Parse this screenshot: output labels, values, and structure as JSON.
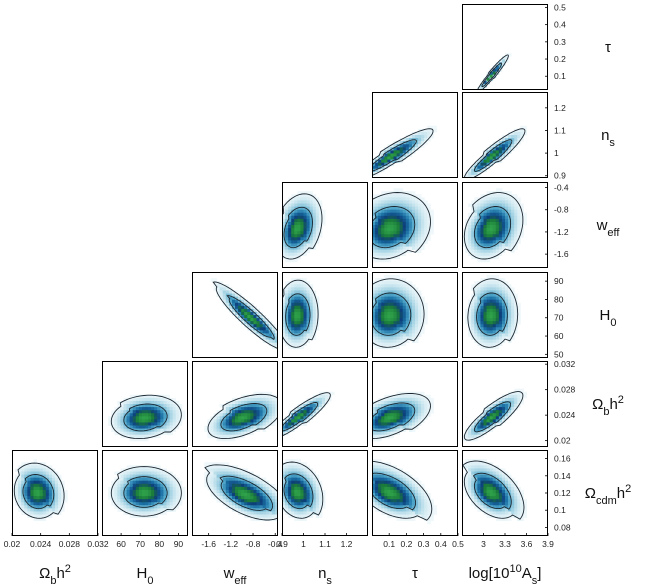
{
  "chart_data": {
    "type": "heatmap",
    "title": "",
    "parameters": [
      {
        "id": "omega_b",
        "name": "Ωbh2",
        "parts": [
          [
            "Ω",
            ""
          ],
          [
            "b",
            "sub"
          ],
          [
            "h",
            ""
          ],
          [
            "2",
            "sup"
          ]
        ],
        "range": [
          0.02,
          0.032
        ],
        "ticks": [
          0.02,
          0.024,
          0.028,
          0.032
        ],
        "tick_labels": [
          "0.02",
          "0.024",
          "0.028",
          "0.032"
        ]
      },
      {
        "id": "h0",
        "name": "H0",
        "parts": [
          [
            "H",
            ""
          ],
          [
            "0",
            "sub"
          ]
        ],
        "range": [
          50,
          95
        ],
        "ticks": [
          60,
          70,
          80,
          90
        ],
        "tick_labels": [
          "60",
          "70",
          "80",
          "90"
        ]
      },
      {
        "id": "w_eff",
        "name": "weff",
        "parts": [
          [
            "w",
            ""
          ],
          [
            "eff",
            "sub"
          ]
        ],
        "range": [
          -1.9,
          -0.35
        ],
        "ticks": [
          -1.6,
          -1.2,
          -0.8,
          -0.4
        ],
        "tick_labels": [
          "-1.6",
          "-1.2",
          "-0.8",
          "-0.4"
        ]
      },
      {
        "id": "n_s",
        "name": "ns",
        "parts": [
          [
            "n",
            ""
          ],
          [
            "s",
            "sub"
          ]
        ],
        "range": [
          0.9,
          1.3
        ],
        "ticks": [
          0.9,
          1.0,
          1.1,
          1.2
        ],
        "tick_labels": [
          "0.9",
          "1",
          "1.1",
          "1.2"
        ]
      },
      {
        "id": "tau",
        "name": "τ",
        "parts": [
          [
            "τ",
            ""
          ]
        ],
        "range": [
          0.0,
          0.5
        ],
        "ticks": [
          0.1,
          0.2,
          0.3,
          0.4,
          0.5
        ],
        "tick_labels": [
          "0.1",
          "0.2",
          "0.3",
          "0.4",
          "0.5"
        ]
      },
      {
        "id": "log_as",
        "name": "log[1010As]",
        "parts": [
          [
            "log[10",
            ""
          ],
          [
            "10",
            "sup"
          ],
          [
            "A",
            ""
          ],
          [
            "s",
            "sub"
          ],
          [
            "]",
            ""
          ]
        ],
        "range": [
          2.7,
          3.9
        ],
        "ticks": [
          3.0,
          3.3,
          3.6,
          3.9
        ],
        "tick_labels": [
          "3",
          "3.3",
          "3.6",
          "3.9"
        ]
      },
      {
        "id": "omega_cdm",
        "name": "Ωcdmh2",
        "parts": [
          [
            "Ω",
            ""
          ],
          [
            "cdm",
            "sub"
          ],
          [
            "h",
            ""
          ],
          [
            "2",
            "sup"
          ]
        ],
        "range": [
          0.07,
          0.17
        ],
        "ticks": [
          0.08,
          0.1,
          0.12,
          0.14,
          0.16
        ],
        "tick_labels": [
          "0.08",
          "0.1",
          "0.12",
          "0.14",
          "0.16"
        ]
      }
    ],
    "x_parameters": [
      "omega_b",
      "h0",
      "w_eff",
      "n_s",
      "tau",
      "log_as"
    ],
    "y_parameters": [
      "tau",
      "n_s",
      "w_eff",
      "h0",
      "omega_b",
      "omega_cdm"
    ],
    "y_ticks": {
      "tau": {
        "values": [
          0.1,
          0.2,
          0.3,
          0.4,
          0.5
        ],
        "labels": [
          "0.1",
          "0.2",
          "0.3",
          "0.4",
          "0.5"
        ],
        "range": [
          0.02,
          0.52
        ]
      },
      "n_s": {
        "values": [
          0.9,
          1.0,
          1.1,
          1.2
        ],
        "labels": [
          "0.9",
          "1",
          "1.1",
          "1.2"
        ],
        "range": [
          0.89,
          1.27
        ]
      },
      "w_eff": {
        "values": [
          -1.6,
          -1.2,
          -0.8,
          -0.4
        ],
        "labels": [
          "-1.6",
          "-1.2",
          "-0.8",
          "-0.4"
        ],
        "range": [
          -1.85,
          -0.3
        ]
      },
      "h0": {
        "values": [
          50,
          60,
          70,
          80,
          90
        ],
        "labels": [
          "50",
          "60",
          "70",
          "80",
          "90"
        ],
        "range": [
          48,
          95
        ]
      },
      "omega_b": {
        "values": [
          0.02,
          0.024,
          0.028,
          0.032
        ],
        "labels": [
          "0.02",
          "0.024",
          "0.028",
          "0.032"
        ],
        "range": [
          0.019,
          0.0325
        ]
      },
      "omega_cdm": {
        "values": [
          0.08,
          0.1,
          0.12,
          0.14,
          0.16
        ],
        "labels": [
          "0.08",
          "0.1",
          "0.12",
          "0.14",
          "0.16"
        ],
        "range": [
          0.07,
          0.17
        ]
      }
    },
    "panels": [
      {
        "x": "log_as",
        "y": "tau",
        "center": [
          3.1,
          0.1
        ],
        "sigma": [
          0.08,
          0.04
        ],
        "rho": 0.96,
        "skew": 0.6
      },
      {
        "x": "tau",
        "y": "n_s",
        "center": [
          0.1,
          0.98
        ],
        "sigma": [
          0.08,
          0.04
        ],
        "rho": 0.92,
        "skew": 0.7
      },
      {
        "x": "log_as",
        "y": "n_s",
        "center": [
          3.1,
          0.98
        ],
        "sigma": [
          0.15,
          0.04
        ],
        "rho": 0.92,
        "skew": 0.7
      },
      {
        "x": "n_s",
        "y": "w_eff",
        "center": [
          0.97,
          -1.15
        ],
        "sigma": [
          0.04,
          0.22
        ],
        "rho": 0.3,
        "skew": 0.4
      },
      {
        "x": "tau",
        "y": "w_eff",
        "center": [
          0.1,
          -1.15
        ],
        "sigma": [
          0.08,
          0.22
        ],
        "rho": 0.2,
        "skew": 0.5
      },
      {
        "x": "log_as",
        "y": "w_eff",
        "center": [
          3.1,
          -1.15
        ],
        "sigma": [
          0.15,
          0.22
        ],
        "rho": 0.25,
        "skew": 0.5
      },
      {
        "x": "w_eff",
        "y": "h0",
        "center": [
          -0.85,
          70
        ],
        "sigma": [
          0.25,
          7
        ],
        "rho": -0.92,
        "skew": 0.3
      },
      {
        "x": "n_s",
        "y": "h0",
        "center": [
          0.97,
          71
        ],
        "sigma": [
          0.035,
          7
        ],
        "rho": 0.05,
        "skew": 0.3
      },
      {
        "x": "tau",
        "y": "h0",
        "center": [
          0.1,
          71
        ],
        "sigma": [
          0.07,
          7
        ],
        "rho": 0.05,
        "skew": 0.4
      },
      {
        "x": "log_as",
        "y": "h0",
        "center": [
          3.1,
          71
        ],
        "sigma": [
          0.13,
          7
        ],
        "rho": 0.05,
        "skew": 0.4
      },
      {
        "x": "h0",
        "y": "omega_b",
        "center": [
          72,
          0.0235
        ],
        "sigma": [
          7,
          0.0013
        ],
        "rho": 0.15,
        "skew": 0.3
      },
      {
        "x": "w_eff",
        "y": "omega_b",
        "center": [
          -1.0,
          0.0235
        ],
        "sigma": [
          0.25,
          0.0013
        ],
        "rho": 0.5,
        "skew": 0.4
      },
      {
        "x": "n_s",
        "y": "omega_b",
        "center": [
          0.97,
          0.0235
        ],
        "sigma": [
          0.05,
          0.0013
        ],
        "rho": 0.9,
        "skew": 0.6
      },
      {
        "x": "tau",
        "y": "omega_b",
        "center": [
          0.1,
          0.0235
        ],
        "sigma": [
          0.08,
          0.0013
        ],
        "rho": 0.5,
        "skew": 0.5
      },
      {
        "x": "log_as",
        "y": "omega_b",
        "center": [
          3.1,
          0.0235
        ],
        "sigma": [
          0.15,
          0.0014
        ],
        "rho": 0.85,
        "skew": 0.5
      },
      {
        "x": "omega_b",
        "y": "omega_cdm",
        "center": [
          0.0235,
          0.12
        ],
        "sigma": [
          0.0013,
          0.012
        ],
        "rho": -0.1,
        "skew": 0.4
      },
      {
        "x": "h0",
        "y": "omega_cdm",
        "center": [
          72,
          0.12
        ],
        "sigma": [
          7,
          0.011
        ],
        "rho": 0.0,
        "skew": 0.3
      },
      {
        "x": "w_eff",
        "y": "omega_cdm",
        "center": [
          -0.95,
          0.118
        ],
        "sigma": [
          0.28,
          0.012
        ],
        "rho": -0.6,
        "skew": 0.4
      },
      {
        "x": "n_s",
        "y": "omega_cdm",
        "center": [
          0.97,
          0.12
        ],
        "sigma": [
          0.04,
          0.012
        ],
        "rho": -0.2,
        "skew": 0.5
      },
      {
        "x": "tau",
        "y": "omega_cdm",
        "center": [
          0.1,
          0.12
        ],
        "sigma": [
          0.08,
          0.012
        ],
        "rho": -0.5,
        "skew": 0.6
      },
      {
        "x": "log_as",
        "y": "omega_cdm",
        "center": [
          3.1,
          0.12
        ],
        "sigma": [
          0.15,
          0.012
        ],
        "rho": -0.45,
        "skew": 0.6
      }
    ],
    "contour_levels": [
      "68%",
      "95%"
    ],
    "colormap": [
      "#ffffff",
      "#d6ecf3",
      "#9fd0e2",
      "#4fa6c9",
      "#1a6fa3",
      "#0d3f7a",
      "#1a7a3a",
      "#2fa24a"
    ]
  }
}
